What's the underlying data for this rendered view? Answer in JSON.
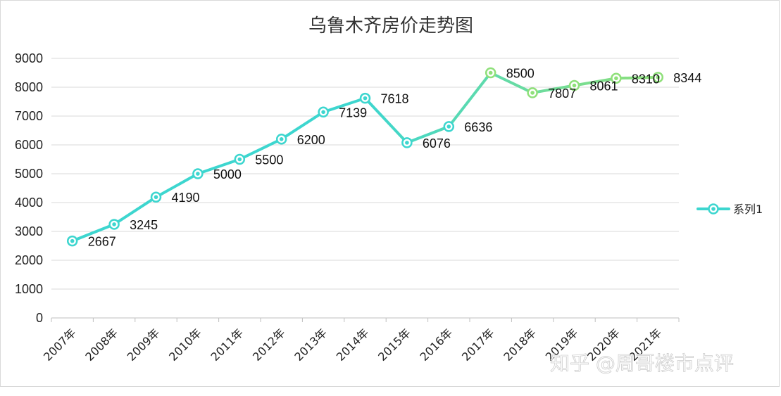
{
  "chart_data": {
    "type": "line",
    "title": "乌鲁木齐房价走势图",
    "categories": [
      "2007年",
      "2008年",
      "2009年",
      "2010年",
      "2011年",
      "2012年",
      "2013年",
      "2014年",
      "2015年",
      "2016年",
      "2017年",
      "2018年",
      "2019年",
      "2020年",
      "2021年"
    ],
    "series": [
      {
        "name": "系列1",
        "values": [
          2667,
          3245,
          4190,
          5000,
          5500,
          6200,
          7139,
          7618,
          6076,
          6636,
          8500,
          7807,
          8061,
          8310,
          8344
        ]
      }
    ],
    "ylim": [
      0,
      9000
    ],
    "yticks": [
      0,
      1000,
      2000,
      3000,
      4000,
      5000,
      6000,
      7000,
      8000,
      9000
    ],
    "grid": true,
    "legend": "right",
    "colors": {
      "line_start": "#3dd6cf",
      "line_end": "#8fe07a",
      "marker_fill": "#3dd6cf"
    }
  },
  "watermark": "知乎 @周哥楼市点评"
}
